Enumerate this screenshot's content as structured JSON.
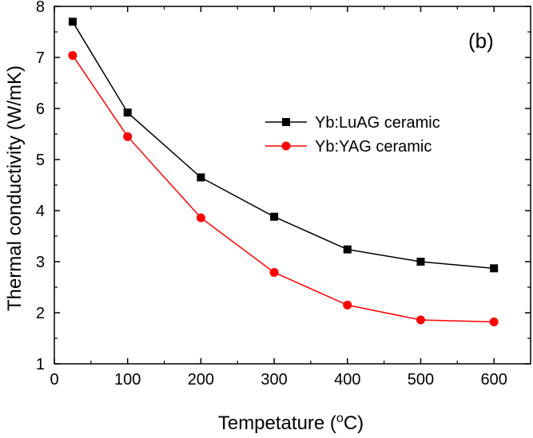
{
  "chart_data": {
    "type": "line",
    "panel_label": "(b)",
    "xlabel_prefix": "Tempetature (",
    "xlabel_sup": "o",
    "xlabel_suffix": "C)",
    "ylabel": "Thermal conductivity (W/mK)",
    "xlim": [
      0,
      650
    ],
    "ylim": [
      1,
      8
    ],
    "xticks": [
      0,
      100,
      200,
      300,
      400,
      500,
      600
    ],
    "yticks": [
      1,
      2,
      3,
      4,
      5,
      6,
      7,
      8
    ],
    "x": [
      25,
      100,
      200,
      300,
      400,
      500,
      600
    ],
    "legend_position": "center-right",
    "grid": false,
    "series": [
      {
        "name": "Yb:LuAG ceramic",
        "color": "#000000",
        "marker": "square",
        "values": [
          7.7,
          5.92,
          4.65,
          3.88,
          3.24,
          3.0,
          2.87
        ]
      },
      {
        "name": "Yb:YAG ceramic",
        "color": "#ff0000",
        "marker": "circle",
        "values": [
          7.04,
          5.45,
          3.86,
          2.79,
          2.15,
          1.86,
          1.82
        ]
      }
    ]
  }
}
